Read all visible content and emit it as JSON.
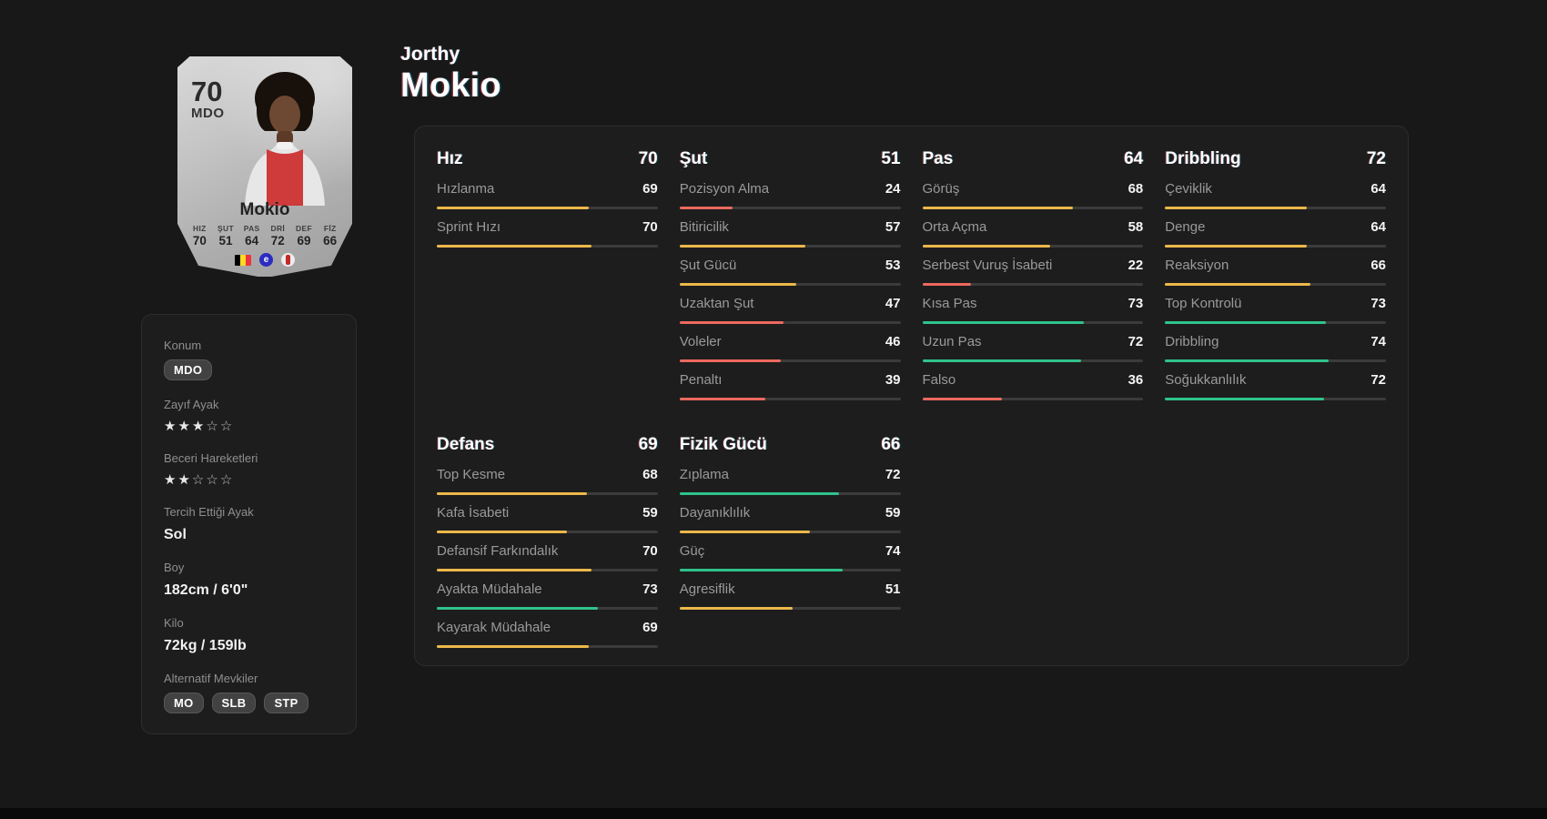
{
  "colors": {
    "page_bg": "#181818",
    "panel_bg": "#1d1d1d",
    "bar_low": "#ed695e",
    "bar_mid": "#ecb84a",
    "bar_high": "#2fc38c",
    "bar_track": "#3b3b3b",
    "flag_belgium": [
      "#000000",
      "#fdda24",
      "#ef3340"
    ],
    "league_logo_bg": "#2b2cc0"
  },
  "icons": {
    "star_filled": "★",
    "star_empty": "☆",
    "league_letter": "e"
  },
  "header": {
    "first_name": "Jorthy",
    "last_name": "Mokio"
  },
  "card": {
    "rating": "70",
    "position": "MDO",
    "name": "Mokio",
    "stats": [
      {
        "label": "HIZ",
        "value": "70"
      },
      {
        "label": "ŞUT",
        "value": "51"
      },
      {
        "label": "PAS",
        "value": "64"
      },
      {
        "label": "DRİ",
        "value": "72"
      },
      {
        "label": "DEF",
        "value": "69"
      },
      {
        "label": "FİZ",
        "value": "66"
      }
    ],
    "nation_icon": "belgium-flag",
    "league_icon": "eredivisie-logo",
    "club_icon": "club-crest"
  },
  "info": {
    "items": [
      {
        "label": "Konum",
        "type": "badges",
        "badges": [
          "MDO"
        ]
      },
      {
        "label": "Zayıf Ayak",
        "type": "stars",
        "filled": 3,
        "total": 5
      },
      {
        "label": "Beceri Hareketleri",
        "type": "stars",
        "filled": 2,
        "total": 5
      },
      {
        "label": "Tercih Ettiği Ayak",
        "type": "text",
        "value": "Sol"
      },
      {
        "label": "Boy",
        "type": "text",
        "value": "182cm / 6'0\""
      },
      {
        "label": "Kilo",
        "type": "text",
        "value": "72kg / 159lb"
      },
      {
        "label": "Alternatif Mevkiler",
        "type": "badges",
        "badges": [
          "MO",
          "SLB",
          "STP"
        ]
      }
    ]
  },
  "stats": {
    "sections": [
      {
        "title": "Hız",
        "value": "70",
        "rows": [
          {
            "label": "Hızlanma",
            "value": 69
          },
          {
            "label": "Sprint Hızı",
            "value": 70
          }
        ]
      },
      {
        "title": "Şut",
        "value": "51",
        "rows": [
          {
            "label": "Pozisyon Alma",
            "value": 24
          },
          {
            "label": "Bitiricilik",
            "value": 57
          },
          {
            "label": "Şut Gücü",
            "value": 53
          },
          {
            "label": "Uzaktan Şut",
            "value": 47
          },
          {
            "label": "Voleler",
            "value": 46
          },
          {
            "label": "Penaltı",
            "value": 39
          }
        ]
      },
      {
        "title": "Pas",
        "value": "64",
        "rows": [
          {
            "label": "Görüş",
            "value": 68
          },
          {
            "label": "Orta Açma",
            "value": 58
          },
          {
            "label": "Serbest Vuruş İsabeti",
            "value": 22
          },
          {
            "label": "Kısa Pas",
            "value": 73
          },
          {
            "label": "Uzun Pas",
            "value": 72
          },
          {
            "label": "Falso",
            "value": 36
          }
        ]
      },
      {
        "title": "Dribbling",
        "value": "72",
        "rows": [
          {
            "label": "Çeviklik",
            "value": 64
          },
          {
            "label": "Denge",
            "value": 64
          },
          {
            "label": "Reaksiyon",
            "value": 66
          },
          {
            "label": "Top Kontrolü",
            "value": 73
          },
          {
            "label": "Dribbling",
            "value": 74
          },
          {
            "label": "Soğukkanlılık",
            "value": 72
          }
        ]
      },
      {
        "title": "Defans",
        "value": "69",
        "rows": [
          {
            "label": "Top Kesme",
            "value": 68
          },
          {
            "label": "Kafa İsabeti",
            "value": 59
          },
          {
            "label": "Defansif Farkındalık",
            "value": 70
          },
          {
            "label": "Ayakta Müdahale",
            "value": 73
          },
          {
            "label": "Kayarak Müdahale",
            "value": 69
          }
        ]
      },
      {
        "title": "Fizik Gücü",
        "value": "66",
        "rows": [
          {
            "label": "Zıplama",
            "value": 72
          },
          {
            "label": "Dayanıklılık",
            "value": 59
          },
          {
            "label": "Güç",
            "value": 74
          },
          {
            "label": "Agresiflik",
            "value": 51
          }
        ]
      }
    ]
  }
}
